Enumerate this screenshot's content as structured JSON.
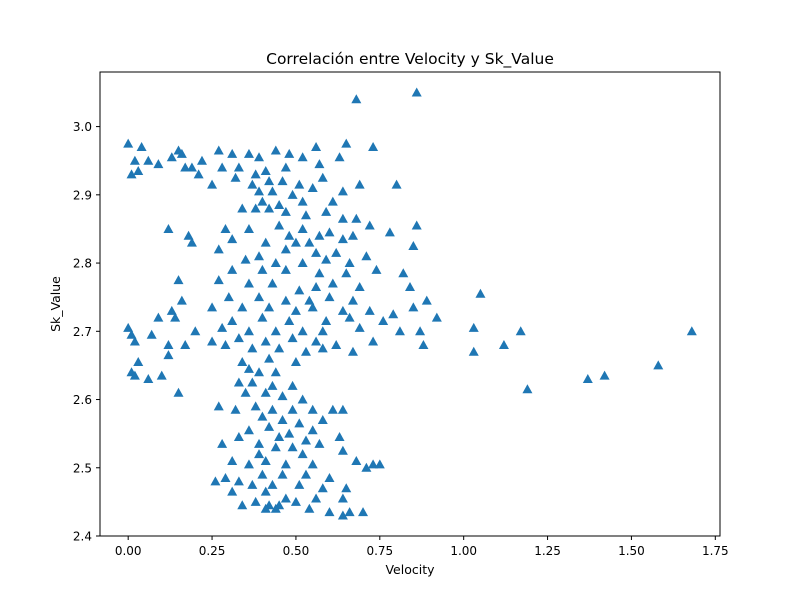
{
  "chart_data": {
    "type": "scatter",
    "title": "Correlación entre Velocity y Sk_Value",
    "xlabel": "Velocity",
    "ylabel": "Sk_Value",
    "xlim": [
      -0.084,
      1.764
    ],
    "ylim": [
      2.4,
      3.08
    ],
    "xticks": [
      0.0,
      0.25,
      0.5,
      0.75,
      1.0,
      1.25,
      1.5,
      1.75
    ],
    "xtick_labels": [
      "0.00",
      "0.25",
      "0.50",
      "0.75",
      "1.00",
      "1.25",
      "1.50",
      "1.75"
    ],
    "yticks": [
      2.4,
      2.5,
      2.6,
      2.7,
      2.8,
      2.9,
      3.0
    ],
    "ytick_labels": [
      "2.4",
      "2.5",
      "2.6",
      "2.7",
      "2.8",
      "2.9",
      "3.0"
    ],
    "grid": false,
    "legend": "none",
    "marker": "triangle-up",
    "color": "#1f77b4",
    "series": [
      {
        "points": [
          [
            0.0,
            2.975
          ],
          [
            0.02,
            2.95
          ],
          [
            0.04,
            2.97
          ],
          [
            0.06,
            2.95
          ],
          [
            0.09,
            2.945
          ],
          [
            0.13,
            2.955
          ],
          [
            0.15,
            2.965
          ],
          [
            0.16,
            2.96
          ],
          [
            0.19,
            2.94
          ],
          [
            0.22,
            2.95
          ],
          [
            0.27,
            2.965
          ],
          [
            0.31,
            2.96
          ],
          [
            0.36,
            2.96
          ],
          [
            0.39,
            2.955
          ],
          [
            0.44,
            2.965
          ],
          [
            0.48,
            2.96
          ],
          [
            0.52,
            2.955
          ],
          [
            0.56,
            2.97
          ],
          [
            0.65,
            2.975
          ],
          [
            0.73,
            2.97
          ],
          [
            0.01,
            2.93
          ],
          [
            0.03,
            2.935
          ],
          [
            0.17,
            2.94
          ],
          [
            0.21,
            2.93
          ],
          [
            0.28,
            2.94
          ],
          [
            0.33,
            2.94
          ],
          [
            0.38,
            2.93
          ],
          [
            0.41,
            2.935
          ],
          [
            0.47,
            2.94
          ],
          [
            0.57,
            2.945
          ],
          [
            0.63,
            2.955
          ],
          [
            0.25,
            2.915
          ],
          [
            0.32,
            2.925
          ],
          [
            0.37,
            2.915
          ],
          [
            0.42,
            2.92
          ],
          [
            0.46,
            2.92
          ],
          [
            0.51,
            2.915
          ],
          [
            0.58,
            2.925
          ],
          [
            0.64,
            2.905
          ],
          [
            0.69,
            2.915
          ],
          [
            0.8,
            2.915
          ],
          [
            0.39,
            2.905
          ],
          [
            0.43,
            2.905
          ],
          [
            0.49,
            2.9
          ],
          [
            0.55,
            2.91
          ],
          [
            0.4,
            2.89
          ],
          [
            0.45,
            2.885
          ],
          [
            0.52,
            2.89
          ],
          [
            0.61,
            2.89
          ],
          [
            0.34,
            2.88
          ],
          [
            0.38,
            2.88
          ],
          [
            0.42,
            2.88
          ],
          [
            0.47,
            2.875
          ],
          [
            0.53,
            2.87
          ],
          [
            0.59,
            2.875
          ],
          [
            0.64,
            2.865
          ],
          [
            0.68,
            2.865
          ],
          [
            0.12,
            2.85
          ],
          [
            0.29,
            2.85
          ],
          [
            0.36,
            2.85
          ],
          [
            0.45,
            2.855
          ],
          [
            0.52,
            2.85
          ],
          [
            0.6,
            2.845
          ],
          [
            0.67,
            2.84
          ],
          [
            0.72,
            2.855
          ],
          [
            0.78,
            2.845
          ],
          [
            0.86,
            2.855
          ],
          [
            0.18,
            2.84
          ],
          [
            0.48,
            2.84
          ],
          [
            0.57,
            2.84
          ],
          [
            0.64,
            2.835
          ],
          [
            0.19,
            2.83
          ],
          [
            0.31,
            2.835
          ],
          [
            0.41,
            2.83
          ],
          [
            0.5,
            2.83
          ],
          [
            0.54,
            2.83
          ],
          [
            0.85,
            2.825
          ],
          [
            0.27,
            2.82
          ],
          [
            0.39,
            2.81
          ],
          [
            0.47,
            2.82
          ],
          [
            0.56,
            2.815
          ],
          [
            0.62,
            2.815
          ],
          [
            0.71,
            2.81
          ],
          [
            0.35,
            2.805
          ],
          [
            0.44,
            2.8
          ],
          [
            0.52,
            2.8
          ],
          [
            0.59,
            2.805
          ],
          [
            0.66,
            2.8
          ],
          [
            0.31,
            2.79
          ],
          [
            0.4,
            2.79
          ],
          [
            0.47,
            2.79
          ],
          [
            0.57,
            2.785
          ],
          [
            0.65,
            2.785
          ],
          [
            0.74,
            2.79
          ],
          [
            0.82,
            2.785
          ],
          [
            0.15,
            2.775
          ],
          [
            0.27,
            2.775
          ],
          [
            0.36,
            2.77
          ],
          [
            0.43,
            2.77
          ],
          [
            0.51,
            2.76
          ],
          [
            0.56,
            2.765
          ],
          [
            0.61,
            2.77
          ],
          [
            0.69,
            2.765
          ],
          [
            0.84,
            2.765
          ],
          [
            0.16,
            2.745
          ],
          [
            0.3,
            2.75
          ],
          [
            0.39,
            2.75
          ],
          [
            0.47,
            2.745
          ],
          [
            0.54,
            2.745
          ],
          [
            0.6,
            2.75
          ],
          [
            0.67,
            2.745
          ],
          [
            0.89,
            2.745
          ],
          [
            1.05,
            2.755
          ],
          [
            0.13,
            2.73
          ],
          [
            0.25,
            2.735
          ],
          [
            0.34,
            2.735
          ],
          [
            0.42,
            2.735
          ],
          [
            0.5,
            2.73
          ],
          [
            0.55,
            2.735
          ],
          [
            0.64,
            2.73
          ],
          [
            0.72,
            2.73
          ],
          [
            0.79,
            2.725
          ],
          [
            0.85,
            2.735
          ],
          [
            0.92,
            2.72
          ],
          [
            0.14,
            2.72
          ],
          [
            0.31,
            2.715
          ],
          [
            0.4,
            2.72
          ],
          [
            0.48,
            2.715
          ],
          [
            0.59,
            2.715
          ],
          [
            0.66,
            2.72
          ],
          [
            0.76,
            2.715
          ],
          [
            0.09,
            2.72
          ],
          [
            0.2,
            2.7
          ],
          [
            0.28,
            2.705
          ],
          [
            0.36,
            2.7
          ],
          [
            0.44,
            2.7
          ],
          [
            0.52,
            2.7
          ],
          [
            0.58,
            2.7
          ],
          [
            0.69,
            2.705
          ],
          [
            0.81,
            2.7
          ],
          [
            0.87,
            2.7
          ],
          [
            1.03,
            2.705
          ],
          [
            1.17,
            2.7
          ],
          [
            1.68,
            2.7
          ],
          [
            0.0,
            2.705
          ],
          [
            0.01,
            2.695
          ],
          [
            0.07,
            2.695
          ],
          [
            0.25,
            2.685
          ],
          [
            0.33,
            2.69
          ],
          [
            0.41,
            2.685
          ],
          [
            0.49,
            2.69
          ],
          [
            0.56,
            2.685
          ],
          [
            0.62,
            2.68
          ],
          [
            0.73,
            2.685
          ],
          [
            0.88,
            2.68
          ],
          [
            1.12,
            2.68
          ],
          [
            0.02,
            2.685
          ],
          [
            0.12,
            2.68
          ],
          [
            0.17,
            2.68
          ],
          [
            0.29,
            2.68
          ],
          [
            0.37,
            2.675
          ],
          [
            0.45,
            2.675
          ],
          [
            0.53,
            2.67
          ],
          [
            0.58,
            2.675
          ],
          [
            0.67,
            2.67
          ],
          [
            1.03,
            2.67
          ],
          [
            0.03,
            2.655
          ],
          [
            0.12,
            2.665
          ],
          [
            0.34,
            2.655
          ],
          [
            0.42,
            2.66
          ],
          [
            0.5,
            2.655
          ],
          [
            0.36,
            2.645
          ],
          [
            0.39,
            2.64
          ],
          [
            0.44,
            2.64
          ],
          [
            0.01,
            2.64
          ],
          [
            0.02,
            2.635
          ],
          [
            0.06,
            2.63
          ],
          [
            0.1,
            2.635
          ],
          [
            0.33,
            2.625
          ],
          [
            0.37,
            2.625
          ],
          [
            0.43,
            2.62
          ],
          [
            0.49,
            2.62
          ],
          [
            1.37,
            2.63
          ],
          [
            1.42,
            2.635
          ],
          [
            1.58,
            2.65
          ],
          [
            0.15,
            2.61
          ],
          [
            0.35,
            2.61
          ],
          [
            0.41,
            2.61
          ],
          [
            0.46,
            2.605
          ],
          [
            0.52,
            2.6
          ],
          [
            1.19,
            2.615
          ],
          [
            0.27,
            2.59
          ],
          [
            0.32,
            2.585
          ],
          [
            0.38,
            2.59
          ],
          [
            0.43,
            2.585
          ],
          [
            0.49,
            2.585
          ],
          [
            0.55,
            2.585
          ],
          [
            0.61,
            2.585
          ],
          [
            0.64,
            2.585
          ],
          [
            0.4,
            2.575
          ],
          [
            0.46,
            2.57
          ],
          [
            0.51,
            2.565
          ],
          [
            0.58,
            2.57
          ],
          [
            0.36,
            2.555
          ],
          [
            0.42,
            2.56
          ],
          [
            0.48,
            2.55
          ],
          [
            0.55,
            2.555
          ],
          [
            0.33,
            2.545
          ],
          [
            0.45,
            2.545
          ],
          [
            0.53,
            2.54
          ],
          [
            0.63,
            2.545
          ],
          [
            0.28,
            2.535
          ],
          [
            0.39,
            2.535
          ],
          [
            0.44,
            2.53
          ],
          [
            0.49,
            2.53
          ],
          [
            0.57,
            2.535
          ],
          [
            0.39,
            2.52
          ],
          [
            0.52,
            2.52
          ],
          [
            0.64,
            2.525
          ],
          [
            0.31,
            2.51
          ],
          [
            0.36,
            2.505
          ],
          [
            0.41,
            2.51
          ],
          [
            0.47,
            2.505
          ],
          [
            0.55,
            2.505
          ],
          [
            0.68,
            2.51
          ],
          [
            0.71,
            2.5
          ],
          [
            0.73,
            2.505
          ],
          [
            0.75,
            2.505
          ],
          [
            0.4,
            2.49
          ],
          [
            0.46,
            2.49
          ],
          [
            0.53,
            2.49
          ],
          [
            0.6,
            2.485
          ],
          [
            0.26,
            2.48
          ],
          [
            0.29,
            2.485
          ],
          [
            0.33,
            2.48
          ],
          [
            0.37,
            2.475
          ],
          [
            0.43,
            2.475
          ],
          [
            0.51,
            2.475
          ],
          [
            0.58,
            2.47
          ],
          [
            0.65,
            2.47
          ],
          [
            0.31,
            2.465
          ],
          [
            0.41,
            2.465
          ],
          [
            0.47,
            2.455
          ],
          [
            0.56,
            2.455
          ],
          [
            0.64,
            2.455
          ],
          [
            0.34,
            2.445
          ],
          [
            0.38,
            2.45
          ],
          [
            0.42,
            2.445
          ],
          [
            0.45,
            2.445
          ],
          [
            0.5,
            2.45
          ],
          [
            0.54,
            2.44
          ],
          [
            0.6,
            2.435
          ],
          [
            0.64,
            2.43
          ],
          [
            0.66,
            2.435
          ],
          [
            0.7,
            2.435
          ],
          [
            0.41,
            2.44
          ],
          [
            0.44,
            2.44
          ],
          [
            0.68,
            3.04
          ],
          [
            0.86,
            3.05
          ]
        ]
      }
    ]
  }
}
